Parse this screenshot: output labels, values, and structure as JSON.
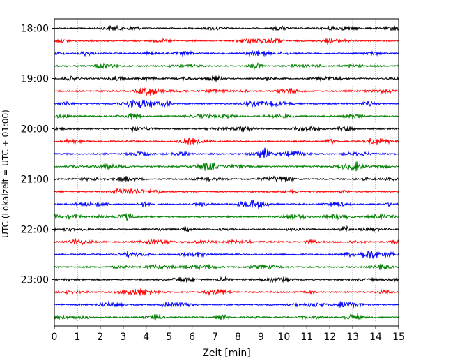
{
  "chart_data": {
    "type": "line",
    "title": "",
    "xlabel": "Zeit  [min]",
    "ylabel": "UTC (Lokalzeit = UTC + 01:00)",
    "xlim": [
      0,
      15
    ],
    "x_ticks": [
      "0",
      "1",
      "2",
      "3",
      "4",
      "5",
      "6",
      "7",
      "8",
      "9",
      "10",
      "11",
      "12",
      "13",
      "14",
      "15"
    ],
    "y_ticks": [
      "18:00",
      "19:00",
      "20:00",
      "21:00",
      "22:00",
      "23:00"
    ],
    "trace_interval_minutes": 15,
    "trace_start": "18:00",
    "trace_count": 24,
    "trace_colors": [
      "#000000",
      "#ff0000",
      "#0000ff",
      "#008000"
    ],
    "grid": {
      "vertical_dotted": true,
      "horizontal": false
    },
    "legend": "none"
  }
}
